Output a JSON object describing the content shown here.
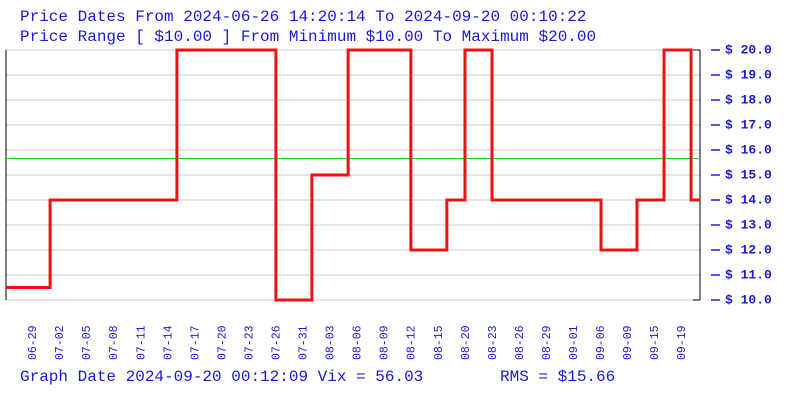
{
  "chart_data": {
    "type": "step-line",
    "title": "Price Dates From 2024-06-26 14:20:14 To 2024-09-20 00:10:22",
    "subtitle": "Price Range [ $10.00 ] From Minimum $10.00 To Maximum $20.00",
    "footer": "Graph Date 2024-09-20 00:12:09 Vix = 56.03",
    "rms": 15.66,
    "rms_label": "RMS = $15.66",
    "rms_color": "#22cc22",
    "series": [
      {
        "color": "#ee1111",
        "x": [
          -1,
          0.63,
          5.32,
          8.98,
          10.31,
          11.65,
          13.97,
          15.3,
          15.97,
          16.97,
          21.0,
          22.33,
          23.33,
          24.33
        ],
        "values": [
          10.5,
          14,
          20,
          10,
          15,
          20,
          12,
          14,
          20,
          14,
          12,
          14,
          20,
          14
        ]
      }
    ],
    "xlim": [
      -1,
      24.66
    ],
    "xticks": [
      {
        "value": 0,
        "label": "06-29"
      },
      {
        "value": 1,
        "label": "07-02"
      },
      {
        "value": 2,
        "label": "07-05"
      },
      {
        "value": 3,
        "label": "07-08"
      },
      {
        "value": 4,
        "label": "07-11"
      },
      {
        "value": 5,
        "label": "07-14"
      },
      {
        "value": 6,
        "label": "07-17"
      },
      {
        "value": 7,
        "label": "07-20"
      },
      {
        "value": 8,
        "label": "07-23"
      },
      {
        "value": 9,
        "label": "07-26"
      },
      {
        "value": 10,
        "label": "07-31"
      },
      {
        "value": 11,
        "label": "08-03"
      },
      {
        "value": 12,
        "label": "08-06"
      },
      {
        "value": 13,
        "label": "08-09"
      },
      {
        "value": 14,
        "label": "08-12"
      },
      {
        "value": 15,
        "label": "08-15"
      },
      {
        "value": 16,
        "label": "08-20"
      },
      {
        "value": 17,
        "label": "08-23"
      },
      {
        "value": 18,
        "label": "08-26"
      },
      {
        "value": 19,
        "label": "08-29"
      },
      {
        "value": 20,
        "label": "09-01"
      },
      {
        "value": 21,
        "label": "09-06"
      },
      {
        "value": 22,
        "label": "09-09"
      },
      {
        "value": 23,
        "label": "09-15"
      },
      {
        "value": 24,
        "label": "09-19"
      }
    ],
    "ylim": [
      10,
      20
    ],
    "yticks": [
      {
        "value": 10,
        "label": "$ 10.0"
      },
      {
        "value": 11,
        "label": "$ 11.0"
      },
      {
        "value": 12,
        "label": "$ 12.0"
      },
      {
        "value": 13,
        "label": "$ 13.0"
      },
      {
        "value": 14,
        "label": "$ 14.0"
      },
      {
        "value": 15,
        "label": "$ 15.0"
      },
      {
        "value": 16,
        "label": "$ 16.0"
      },
      {
        "value": 17,
        "label": "$ 17.0"
      },
      {
        "value": 18,
        "label": "$ 18.0"
      },
      {
        "value": 19,
        "label": "$ 19.0"
      },
      {
        "value": 20,
        "label": "$ 20.0"
      }
    ],
    "grid": true
  }
}
